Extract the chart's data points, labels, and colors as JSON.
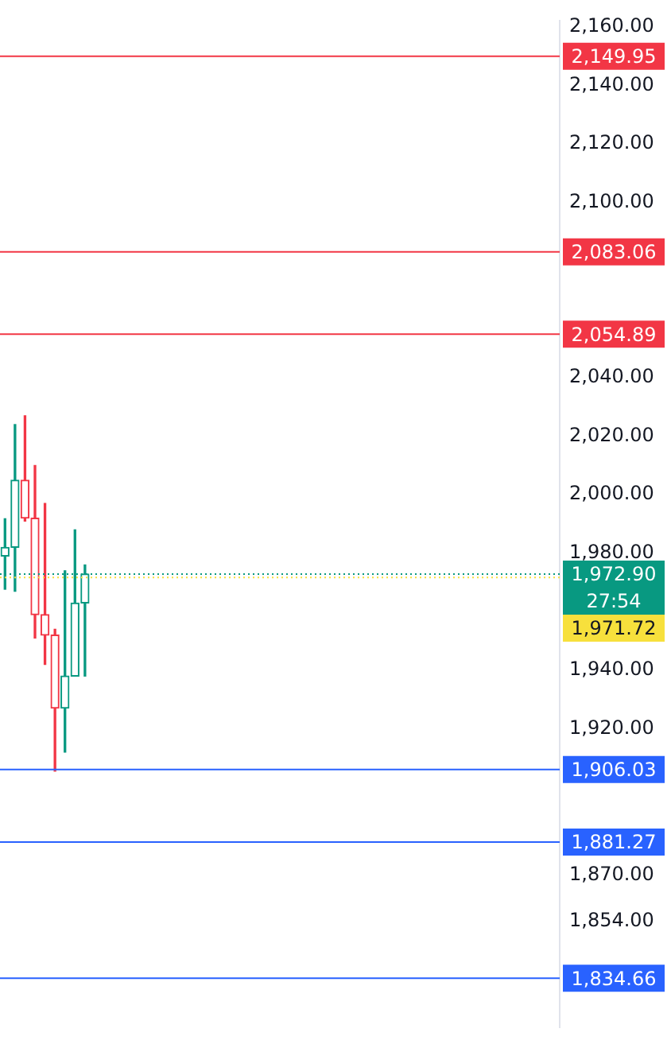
{
  "chart_data": {
    "type": "candlestick",
    "categories": [
      null,
      null,
      null,
      null,
      null,
      null,
      null,
      null,
      null,
      null,
      null,
      null,
      null,
      null,
      null,
      null,
      null,
      null,
      null,
      null,
      null,
      null,
      null,
      null,
      null,
      null,
      null,
      null,
      null,
      null,
      null,
      null,
      null,
      null,
      null,
      null,
      null,
      null,
      null,
      null,
      null,
      null,
      null,
      null,
      null,
      null,
      null,
      null,
      null,
      null,
      null,
      null,
      null,
      null,
      null,
      null
    ],
    "ohlc": [
      [
        1979,
        1991.8,
        1967.7,
        1982
      ],
      [
        1982,
        2024,
        1967,
        2005
      ],
      [
        2005,
        2027,
        1991,
        1992
      ],
      [
        1992,
        2010,
        1951,
        1959
      ],
      [
        1959,
        1997,
        1942,
        1952
      ],
      [
        1952,
        1954,
        1905.5,
        1927
      ],
      [
        1927,
        1974,
        1912,
        1938
      ],
      [
        1938,
        1988,
        1938,
        1963
      ],
      [
        1963,
        1976,
        1938,
        1972.9
      ],
      null,
      null,
      null,
      null,
      null,
      null,
      null,
      null,
      null,
      null,
      null,
      null,
      null,
      null,
      null,
      null,
      null,
      null,
      null,
      null,
      null,
      null,
      null,
      null,
      null,
      null,
      null,
      null,
      null,
      null,
      null,
      null,
      null,
      null,
      null,
      null,
      null,
      null,
      null,
      null,
      null,
      null,
      null,
      null,
      null,
      null,
      null
    ],
    "colors": [
      "#089981",
      "#089981",
      "#f23645",
      "#f23645",
      "#f23645",
      "#f23645",
      "#089981",
      "#089981",
      "#089981",
      null,
      null,
      null,
      null,
      null,
      null,
      null,
      null,
      null,
      null,
      null,
      null,
      null,
      null,
      null,
      null,
      null,
      null,
      null,
      null,
      null,
      null,
      null,
      null,
      null,
      null,
      null,
      null,
      null,
      null,
      null,
      null,
      null,
      null,
      null,
      null,
      null,
      null,
      null,
      null,
      null,
      null,
      null,
      null,
      null,
      null,
      null
    ],
    "ylim": [
      1818,
      2162
    ],
    "yticks": [
      {
        "value": 2160,
        "label": "2,160.00"
      },
      {
        "value": 2140,
        "label": "2,140.00"
      },
      {
        "value": 2120,
        "label": "2,120.00"
      },
      {
        "value": 2100,
        "label": "2,100.00"
      },
      {
        "value": 2040,
        "label": "2,040.00"
      },
      {
        "value": 2020,
        "label": "2,020.00"
      },
      {
        "value": 2000,
        "label": "2,000.00"
      },
      {
        "value": 1980,
        "label": "1,980.00"
      },
      {
        "value": 1940,
        "label": "1,940.00"
      },
      {
        "value": 1920,
        "label": "1,920.00"
      },
      {
        "value": 1870,
        "label": "1,870.00"
      },
      {
        "value": 1854,
        "label": "1,854.00"
      }
    ],
    "tick_labels": "y",
    "grid": false,
    "legend": false,
    "ref_lines": [
      {
        "axis": "y",
        "value": 2149.95,
        "label": "2,149.95",
        "color": "#f23645",
        "line_style": "solid"
      },
      {
        "axis": "y",
        "value": 2083.06,
        "label": "2,083.06",
        "color": "#f23645",
        "line_style": "solid"
      },
      {
        "axis": "y",
        "value": 2054.89,
        "label": "2,054.89",
        "color": "#f23645",
        "line_style": "solid"
      },
      {
        "axis": "y",
        "value": 1972.9,
        "label": "1,972.90",
        "color": "#089981",
        "line_style": "dotted"
      },
      {
        "axis": "y",
        "value": 1971.72,
        "label": "1,971.72",
        "color": "#f7e03c",
        "line_style": "dotted"
      },
      {
        "axis": "y",
        "value": 1906.03,
        "label": "1,906.03",
        "color": "#2962ff",
        "line_style": "solid"
      },
      {
        "axis": "y",
        "value": 1881.27,
        "label": "1,881.27",
        "color": "#2962ff",
        "line_style": "solid"
      },
      {
        "axis": "y",
        "value": 1834.66,
        "label": "1,834.66",
        "color": "#2962ff",
        "line_style": "solid"
      }
    ],
    "annotations": [
      "27:54"
    ]
  }
}
